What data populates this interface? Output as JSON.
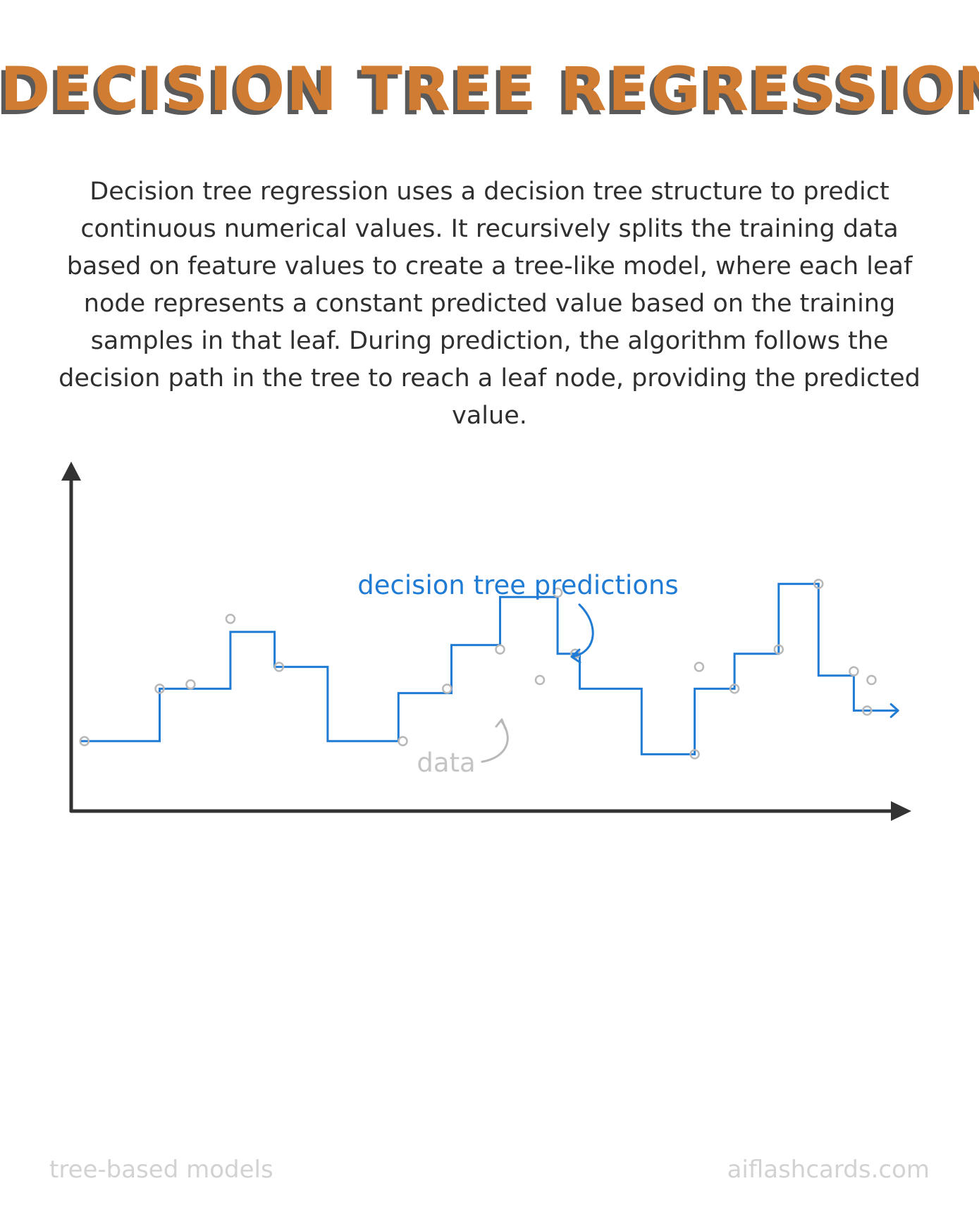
{
  "title": "DECISION TREE REGRESSION",
  "description": "Decision tree regression uses a decision tree structure to predict continuous numerical values. It recursively splits the training data based on feature values to create a tree-like model, where each leaf node represents a constant predicted value based on the training samples in that leaf. During prediction, the algorithm follows the decision path in the tree to reach a leaf node, providing the predicted value.",
  "chart_data": {
    "type": "scatter",
    "annotations": {
      "predictions": "decision tree predictions",
      "data": "data"
    },
    "series": [
      {
        "name": "decision tree predictions",
        "type": "step",
        "segments": [
          {
            "x0": 0.1,
            "x1": 1.0,
            "y": 0.8
          },
          {
            "x0": 1.0,
            "x1": 1.8,
            "y": 1.4
          },
          {
            "x0": 1.8,
            "x1": 2.3,
            "y": 2.05
          },
          {
            "x0": 2.3,
            "x1": 2.9,
            "y": 1.65
          },
          {
            "x0": 2.9,
            "x1": 3.7,
            "y": 0.8
          },
          {
            "x0": 3.7,
            "x1": 4.3,
            "y": 1.35
          },
          {
            "x0": 4.3,
            "x1": 4.85,
            "y": 1.9
          },
          {
            "x0": 4.85,
            "x1": 5.5,
            "y": 2.45
          },
          {
            "x0": 5.5,
            "x1": 5.75,
            "y": 1.8
          },
          {
            "x0": 5.75,
            "x1": 6.45,
            "y": 1.4
          },
          {
            "x0": 6.45,
            "x1": 7.05,
            "y": 0.65
          },
          {
            "x0": 7.05,
            "x1": 7.5,
            "y": 1.4
          },
          {
            "x0": 7.5,
            "x1": 8.0,
            "y": 1.8
          },
          {
            "x0": 8.0,
            "x1": 8.45,
            "y": 2.6
          },
          {
            "x0": 8.45,
            "x1": 8.85,
            "y": 1.55
          },
          {
            "x0": 8.85,
            "x1": 9.35,
            "y": 1.15
          }
        ]
      },
      {
        "name": "data",
        "type": "points",
        "x": [
          0.15,
          1.0,
          1.35,
          1.8,
          2.35,
          3.75,
          4.25,
          4.85,
          5.3,
          5.5,
          5.7,
          7.05,
          7.1,
          7.5,
          8.0,
          8.45,
          8.85,
          9.0,
          9.05
        ],
        "y": [
          0.8,
          1.4,
          1.45,
          2.2,
          1.65,
          0.8,
          1.4,
          1.85,
          1.5,
          2.5,
          1.8,
          0.65,
          1.65,
          1.4,
          1.85,
          2.6,
          1.6,
          1.15,
          1.5
        ]
      }
    ],
    "xlim": [
      0,
      9.5
    ],
    "ylim": [
      0,
      4
    ],
    "colors": {
      "predictions": "#1f7bd4",
      "data": "#b8b8b8",
      "axes": "#333333"
    }
  },
  "footer": {
    "left": "tree-based models",
    "right": "aiflashcards.com"
  }
}
